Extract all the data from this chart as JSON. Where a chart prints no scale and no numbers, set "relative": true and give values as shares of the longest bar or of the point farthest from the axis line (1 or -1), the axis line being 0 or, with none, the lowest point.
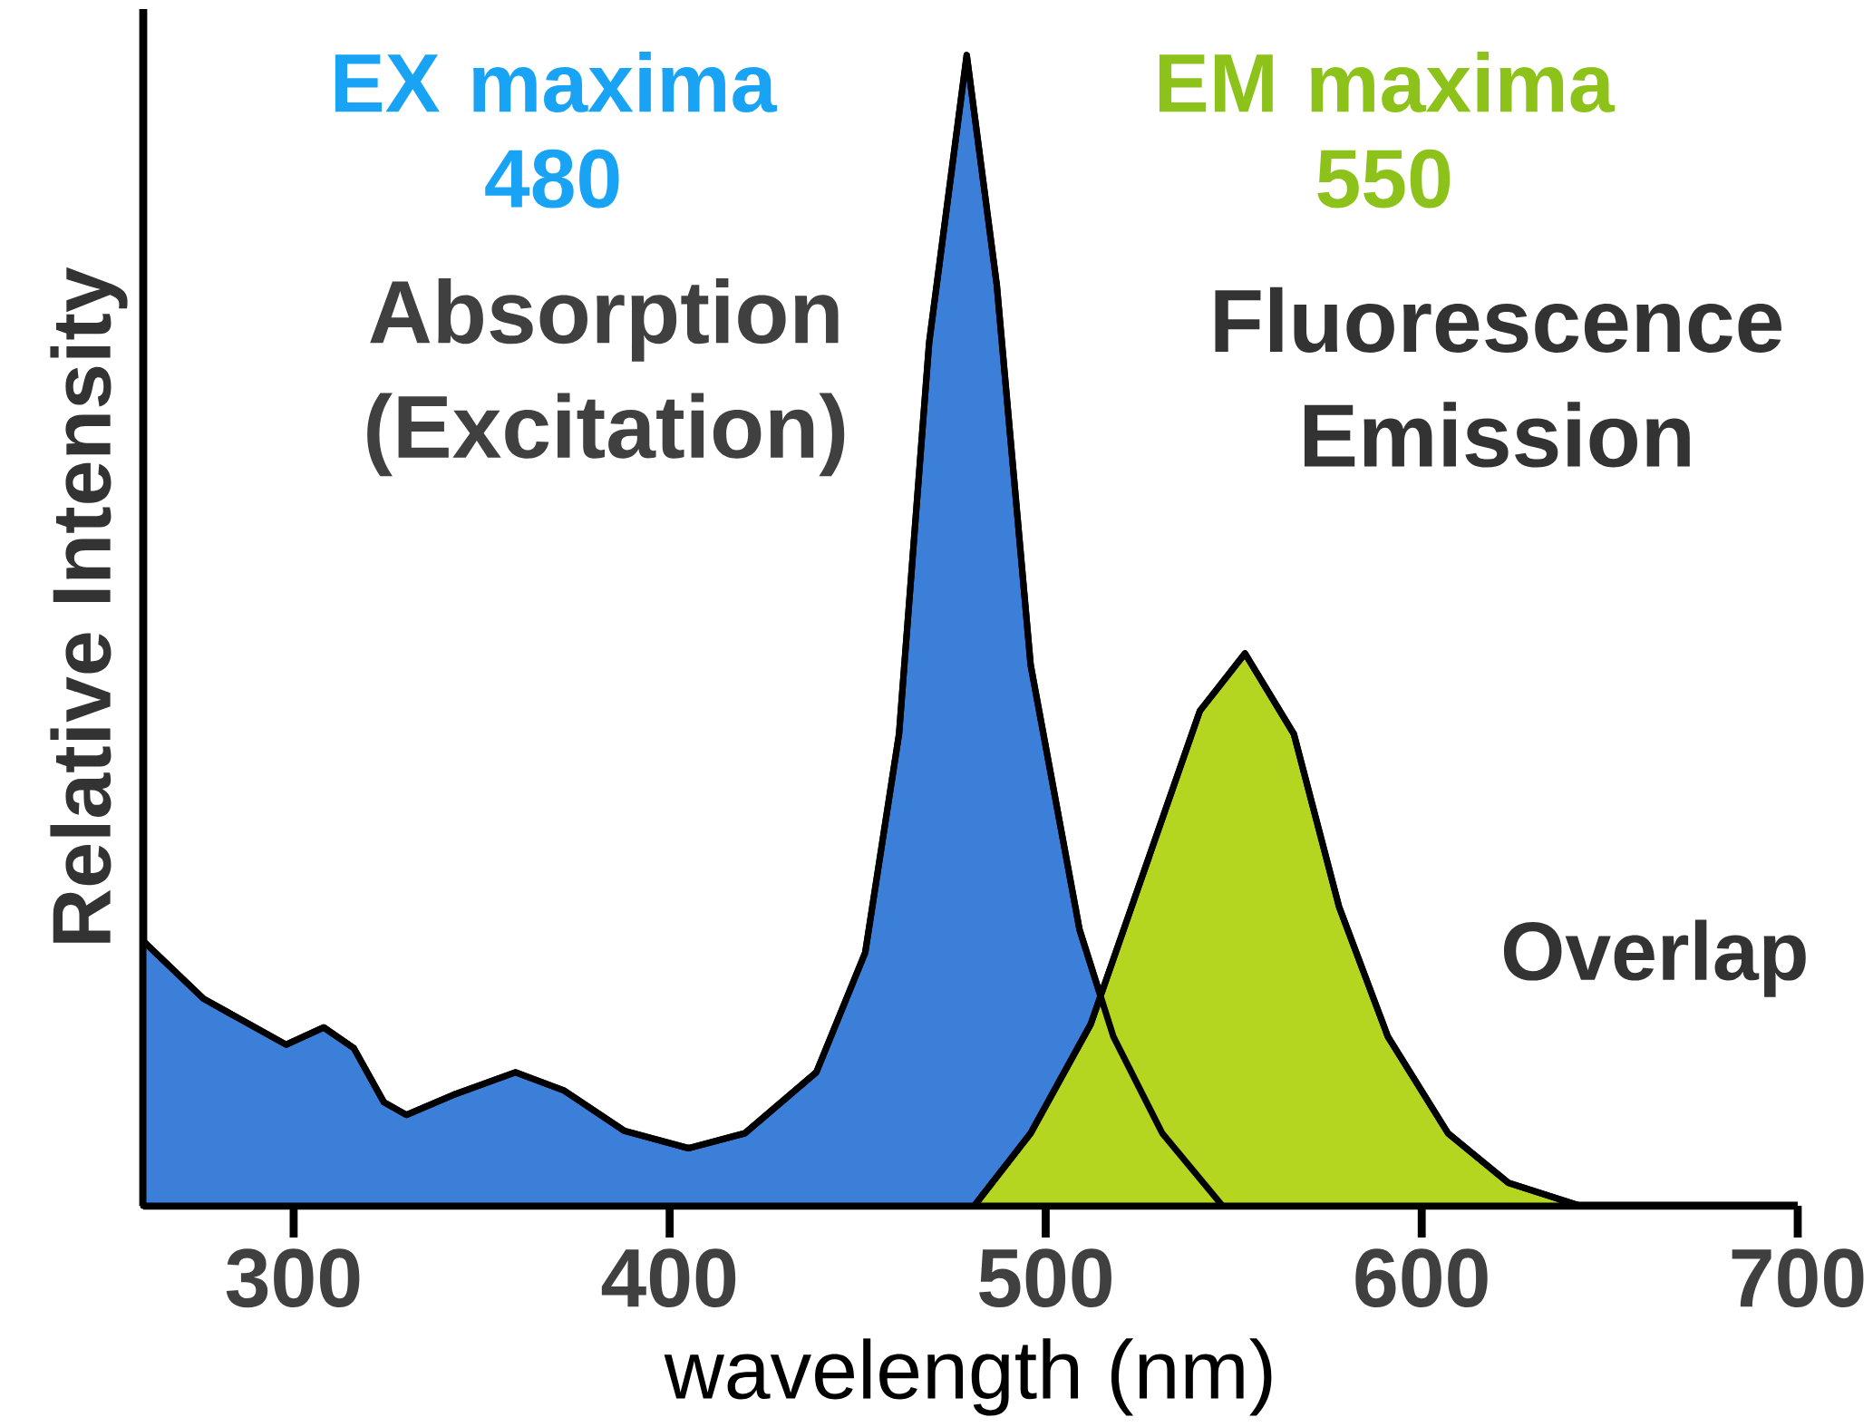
{
  "chart_data": {
    "type": "area",
    "relative": true,
    "xlabel": "wavelength (nm)",
    "ylabel": "Relative Intensity",
    "xlim": [
      260,
      700
    ],
    "xticks": [
      300,
      400,
      500,
      600,
      700
    ],
    "series": [
      {
        "name": "Absorption (Excitation)",
        "color": "#3b7fd9",
        "x": [
          260,
          276,
          298,
          308,
          316,
          324,
          330,
          343,
          359,
          372,
          388,
          405,
          420,
          439,
          452,
          461,
          469,
          479,
          487,
          496,
          509,
          518,
          531,
          547
        ],
        "values": [
          0.23,
          0.18,
          0.14,
          0.155,
          0.137,
          0.09,
          0.079,
          0.097,
          0.116,
          0.1,
          0.065,
          0.05,
          0.063,
          0.116,
          0.22,
          0.41,
          0.75,
          1.0,
          0.8,
          0.47,
          0.24,
          0.147,
          0.063,
          0
        ]
      },
      {
        "name": "Fluorescence Emission",
        "color": "#b5d620",
        "x": [
          481,
          496,
          512,
          525,
          541,
          553,
          566,
          578,
          591,
          607,
          623,
          642
        ],
        "values": [
          0,
          0.063,
          0.158,
          0.28,
          0.43,
          0.48,
          0.41,
          0.26,
          0.147,
          0.063,
          0.02,
          0
        ]
      }
    ],
    "annotations": [
      "EX maxima 480",
      "EM maxima 550",
      "Overlap"
    ]
  }
}
